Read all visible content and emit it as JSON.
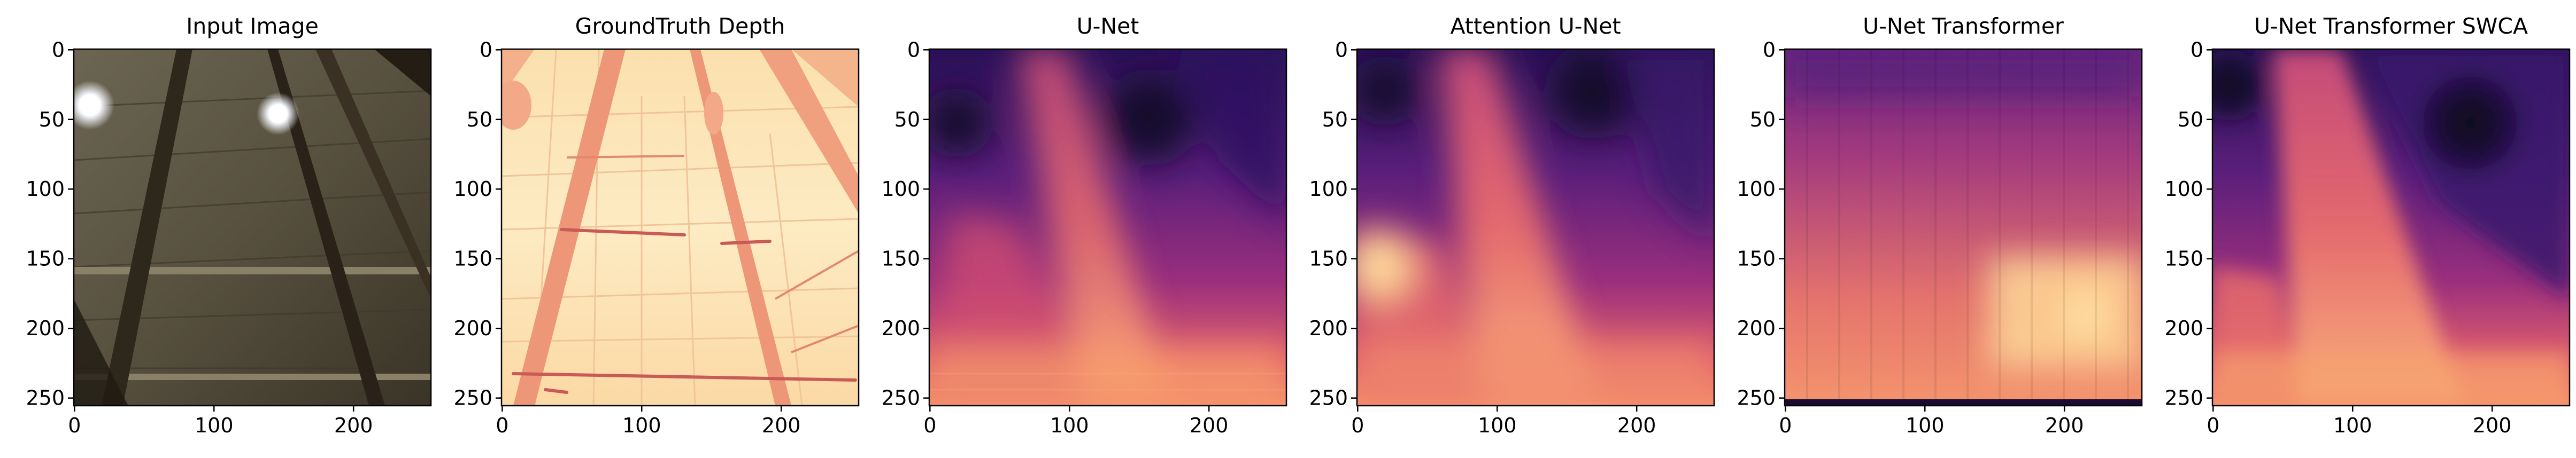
{
  "panels": [
    {
      "title": "Input Image",
      "kind": "photo",
      "x_ticks": [
        "0",
        "100",
        "200"
      ],
      "y_ticks": [
        "0",
        "50",
        "100",
        "150",
        "200",
        "250"
      ]
    },
    {
      "title": "GroundTruth Depth",
      "kind": "gt",
      "x_ticks": [
        "0",
        "100",
        "200"
      ],
      "y_ticks": [
        "0",
        "50",
        "100",
        "150",
        "200",
        "250"
      ]
    },
    {
      "title": "U-Net",
      "kind": "pred-unet",
      "x_ticks": [
        "0",
        "100",
        "200"
      ],
      "y_ticks": [
        "0",
        "50",
        "100",
        "150",
        "200",
        "250"
      ]
    },
    {
      "title": "Attention U-Net",
      "kind": "pred-attn",
      "x_ticks": [
        "0",
        "100",
        "200"
      ],
      "y_ticks": [
        "0",
        "50",
        "100",
        "150",
        "200",
        "250"
      ]
    },
    {
      "title": "U-Net Transformer",
      "kind": "pred-trans",
      "x_ticks": [
        "0",
        "100",
        "200"
      ],
      "y_ticks": [
        "0",
        "50",
        "100",
        "150",
        "200",
        "250"
      ]
    },
    {
      "title": "U-Net Transformer SWCA",
      "kind": "pred-swca",
      "x_ticks": [
        "0",
        "100",
        "200"
      ],
      "y_ticks": [
        "0",
        "50",
        "100",
        "150",
        "200",
        "250"
      ]
    }
  ],
  "axis_range": {
    "x": [
      0,
      255
    ],
    "y": [
      0,
      255
    ]
  },
  "colormap": "magma",
  "colors": {
    "frame": "#000000",
    "photo_base": "#5a5446",
    "gt_base": "#fde7b8",
    "gt_line": "#e8826a"
  }
}
